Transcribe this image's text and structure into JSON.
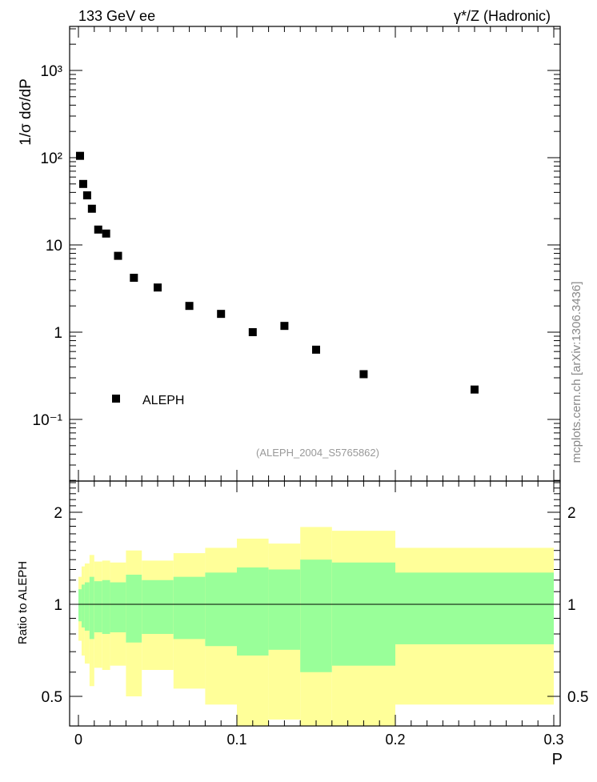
{
  "chart_data": [
    {
      "type": "scatter",
      "title_left": "133 GeV ee",
      "title_right": "γ*/Z (Hadronic)",
      "ylabel": "1/σ  dσ/dP",
      "yscale": "log",
      "ylim": [
        0.02,
        3000
      ],
      "xlim": [
        -0.005,
        0.305
      ],
      "ytick_labels": [
        {
          "v": 1000,
          "t": "10³"
        },
        {
          "v": 100,
          "t": "10²"
        },
        {
          "v": 10,
          "t": "10"
        },
        {
          "v": 1,
          "t": "1"
        },
        {
          "v": 0.1,
          "t": "10⁻¹"
        }
      ],
      "legend": "ALEPH",
      "legend_placement": "bottom-left",
      "annotation": "(ALEPH_2004_S5765862)",
      "watermark": "mcplots.cern.ch [arXiv:1306.3436]",
      "series": [
        {
          "name": "ALEPH",
          "x": [
            0.001,
            0.003,
            0.0055,
            0.0085,
            0.0125,
            0.0175,
            0.025,
            0.035,
            0.05,
            0.07,
            0.09,
            0.11,
            0.13,
            0.15,
            0.18,
            0.25
          ],
          "y": [
            105,
            50,
            37,
            26,
            15,
            13.5,
            7.5,
            4.2,
            3.25,
            2.0,
            1.62,
            1.0,
            1.18,
            0.63,
            0.33,
            0.22
          ]
        }
      ]
    },
    {
      "type": "area",
      "ylabel": "Ratio to ALEPH",
      "xlabel": "P",
      "yscale": "log",
      "ylim": [
        0.4,
        2.5
      ],
      "xtick_labels": [
        "0",
        "0.1",
        "0.2",
        "0.3"
      ],
      "ytick_labels": [
        "0.5",
        "1",
        "2"
      ],
      "bin_edges": [
        0,
        0.002,
        0.004,
        0.007,
        0.01,
        0.015,
        0.02,
        0.03,
        0.04,
        0.06,
        0.08,
        0.1,
        0.12,
        0.14,
        0.16,
        0.2,
        0.3
      ],
      "band_outer_hi": [
        1.23,
        1.33,
        1.36,
        1.45,
        1.38,
        1.39,
        1.37,
        1.5,
        1.39,
        1.47,
        1.53,
        1.64,
        1.58,
        1.79,
        1.74,
        1.53
      ],
      "band_inner_hi": [
        1.12,
        1.16,
        1.18,
        1.23,
        1.19,
        1.2,
        1.18,
        1.25,
        1.2,
        1.23,
        1.27,
        1.32,
        1.3,
        1.4,
        1.37,
        1.27
      ],
      "band_inner_lo": [
        0.88,
        0.84,
        0.82,
        0.77,
        0.81,
        0.8,
        0.81,
        0.75,
        0.8,
        0.77,
        0.73,
        0.68,
        0.71,
        0.6,
        0.63,
        0.74
      ],
      "band_outer_lo": [
        0.76,
        0.68,
        0.64,
        0.54,
        0.62,
        0.61,
        0.63,
        0.5,
        0.61,
        0.53,
        0.47,
        0.38,
        0.42,
        0.38,
        0.38,
        0.47
      ],
      "colors": {
        "outer": "#ffff99",
        "inner": "#99ff99"
      }
    }
  ]
}
